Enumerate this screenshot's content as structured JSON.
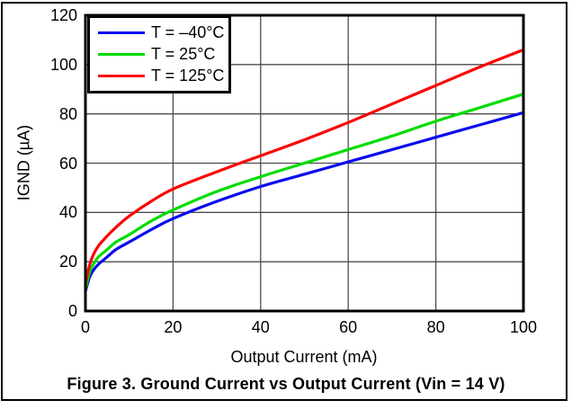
{
  "figure": {
    "caption": "Figure 3. Ground Current vs Output Current (Vin = 14 V)"
  },
  "chart_data": {
    "type": "line",
    "title": "",
    "xlabel": "Output Current (mA)",
    "ylabel": "IGND (µA)",
    "xlim": [
      0,
      100
    ],
    "ylim": [
      0,
      120
    ],
    "x_ticks": [
      0,
      20,
      40,
      60,
      80,
      100
    ],
    "y_ticks": [
      0,
      20,
      40,
      60,
      80,
      100,
      120
    ],
    "grid": true,
    "legend_position": "top-left",
    "x": [
      0,
      1,
      2,
      3,
      5,
      7,
      10,
      15,
      20,
      30,
      40,
      50,
      60,
      70,
      80,
      90,
      100
    ],
    "series": [
      {
        "name": "T = –40°C",
        "slug": "curve-t-minus-40c",
        "color": "#0a0aee",
        "values": [
          8,
          14,
          17,
          19,
          22,
          25,
          28,
          33,
          37.5,
          44.5,
          50.5,
          55.5,
          60.5,
          65.5,
          70.5,
          75.5,
          80.5
        ]
      },
      {
        "name": "T = 25°C",
        "slug": "curve-t-25c",
        "color": "#00dc00",
        "values": [
          9,
          16,
          19.5,
          22,
          25,
          28,
          31,
          36.5,
          41,
          48.5,
          54.5,
          60,
          65.5,
          71,
          77,
          82.5,
          88
        ]
      },
      {
        "name": "T = 125°C",
        "slug": "curve-t-125c",
        "color": "#fb0404",
        "values": [
          11,
          19,
          23.5,
          26.5,
          30.5,
          34,
          38.5,
          44.5,
          49.5,
          56.5,
          63,
          69.5,
          76.5,
          84,
          91.5,
          99,
          106
        ]
      }
    ]
  },
  "colors": {
    "grid": "#4d4d4d",
    "frame": "#000000",
    "background": "#ffffff"
  }
}
